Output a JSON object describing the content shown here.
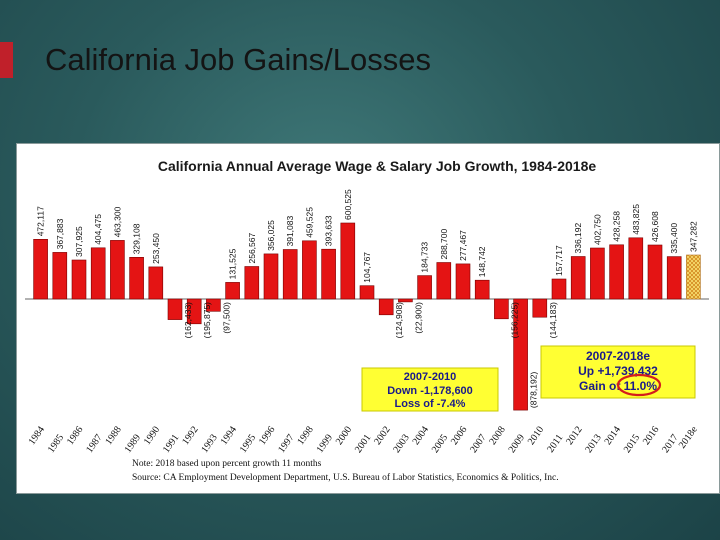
{
  "slide": {
    "title": "California Job Gains/Losses"
  },
  "chart_data": {
    "type": "bar",
    "title": "California Annual Average Wage & Salary Job Growth, 1984-2018e",
    "categories": [
      "1984",
      "1985",
      "1986",
      "1987",
      "1988",
      "1989",
      "1990",
      "1991",
      "1992",
      "1993",
      "1994",
      "1995",
      "1996",
      "1997",
      "1998",
      "1999",
      "2000",
      "2001",
      "2002",
      "2003",
      "2004",
      "2005",
      "2006",
      "2007",
      "2008",
      "2009",
      "2010",
      "2011",
      "2012",
      "2013",
      "2014",
      "2015",
      "2016",
      "2017",
      "2018e"
    ],
    "values": [
      472117,
      367883,
      307925,
      404475,
      463300,
      329108,
      253450,
      -162433,
      -195875,
      -97500,
      131525,
      256567,
      356025,
      391083,
      459525,
      393633,
      600525,
      104767,
      -124908,
      -22900,
      184733,
      288700,
      277467,
      148742,
      -156225,
      -878192,
      -144183,
      157717,
      336192,
      402750,
      428258,
      483825,
      426608,
      335400,
      347282
    ],
    "value_labels": [
      "472,117",
      "367,883",
      "307,925",
      "404,475",
      "463,300",
      "329,108",
      "253,450",
      "(162,433)",
      "(195,875)",
      "(97,500)",
      "131,525",
      "256,567",
      "356,025",
      "391,083",
      "459,525",
      "393,633",
      "600,525",
      "104,767",
      "(124,908)",
      "(22,900)",
      "184,733",
      "288,700",
      "277,467",
      "148,742",
      "(156,225)",
      "(878,192)",
      "(144,183)",
      "157,717",
      "336,192",
      "402,750",
      "428,258",
      "483,825",
      "426,608",
      "335,400",
      "347,282"
    ],
    "estimate_category": "2018e",
    "ylim": [
      -880000,
      620000
    ],
    "grid": false,
    "annotations": [
      {
        "id": "recession",
        "lines": [
          "2007-2010",
          "Down -1,178,600",
          "Loss of -7.4%"
        ]
      },
      {
        "id": "recovery",
        "lines": [
          "2007-2018e",
          "Up +1,739,432",
          "Gain of 11.0%"
        ]
      }
    ],
    "notes": [
      "Note:  2018 based upon percent growth 11 months",
      "Source: CA Employment Development Department, U.S. Bureau of Labor Statistics, Economics & Politics, Inc."
    ],
    "colors": {
      "bar": "#e41414",
      "bar_outline": "#7a0000",
      "estimate_bar": "#e8c24a",
      "box_fill": "#ffff33",
      "highlight_circle": "#d41c1c"
    }
  }
}
